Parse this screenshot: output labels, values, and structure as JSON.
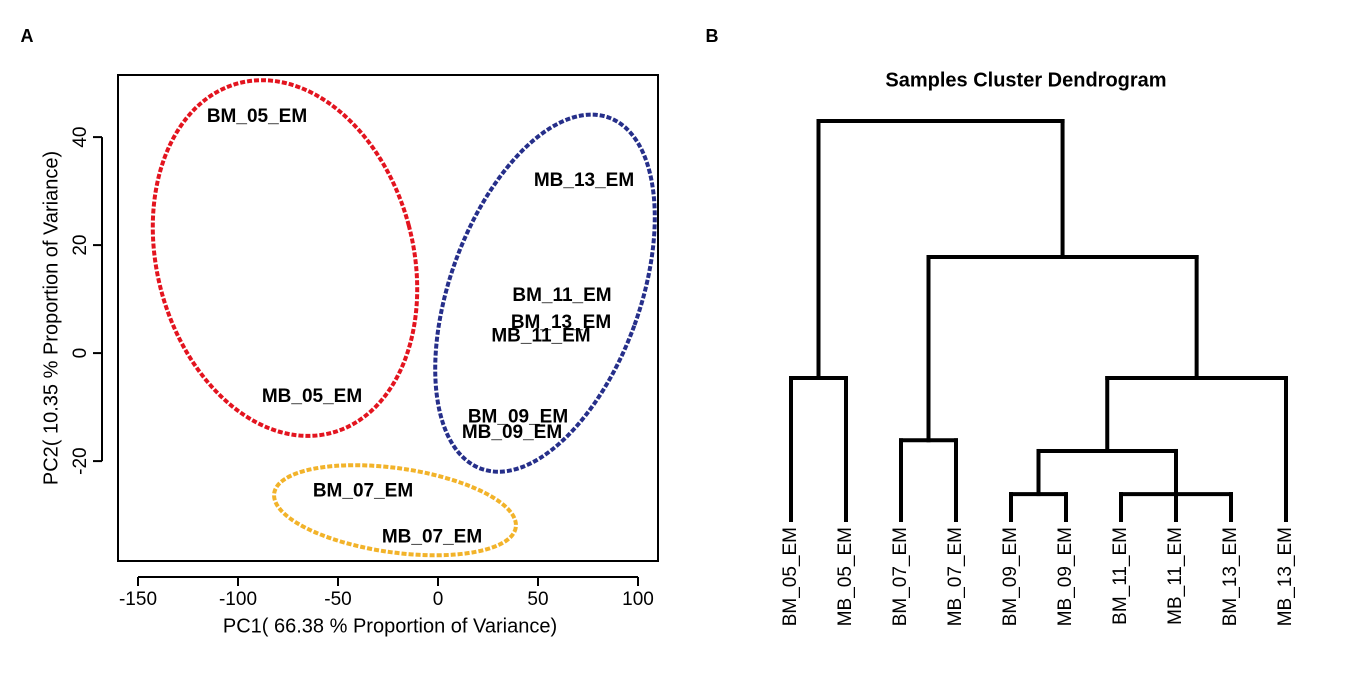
{
  "chart_data": [
    {
      "type": "scatter",
      "panel_label": "A",
      "x_label": "PC1( 66.38 % Proportion of Variance)",
      "y_label": "PC2( 10.35 % Proportion of Variance)",
      "labels": [
        "BM_05_EM",
        "MB_13_EM",
        "BM_11_EM",
        "BM_13_EM",
        "MB_11_EM",
        "MB_05_EM",
        "BM_09_EM",
        "MB_09_EM",
        "BM_07_EM",
        "MB_07_EM"
      ],
      "x": [
        -90.5,
        73,
        62,
        61.5,
        51.5,
        -63,
        40,
        37,
        -37.5,
        -3
      ],
      "y": [
        43.7,
        31.9,
        10.6,
        5.6,
        3.1,
        -8.1,
        -11.9,
        -14.8,
        -25.6,
        -34.1
      ],
      "ellipses": [
        {
          "color": "#e3141f",
          "cx": -76.5,
          "cy": 17.6,
          "rx": 64,
          "ry": 33.5,
          "angle": -15
        },
        {
          "color": "#262f8a",
          "cx": 53.5,
          "cy": 11.1,
          "rx": 47.5,
          "ry": 34.6,
          "angle": 20
        },
        {
          "color": "#f2b32a",
          "cx": -21.5,
          "cy": -29.1,
          "rx": 61,
          "ry": 7.8,
          "angle": 8
        }
      ],
      "xlim": [
        -160,
        110
      ],
      "ylim": [
        -38.5,
        51.5
      ],
      "xticks": [
        -150,
        -100,
        -50,
        0,
        50,
        100
      ],
      "yticks": [
        -20,
        0,
        20,
        40
      ]
    },
    {
      "type": "dendrogram",
      "panel_label": "B",
      "title": "Samples Cluster Dendrogram",
      "labels": [
        "BM_05_EM",
        "MB_05_EM",
        "BM_07_EM",
        "MB_07_EM",
        "BM_09_EM",
        "MB_09_EM",
        "BM_11_EM",
        "MB_11_EM",
        "BM_13_EM",
        "MB_13_EM"
      ],
      "merges": [
        {
          "left": -1,
          "right": -2,
          "height": 35.6
        },
        {
          "left": -3,
          "right": -4,
          "height": 20
        },
        {
          "left": -5,
          "right": -6,
          "height": 6.5
        },
        {
          "left": -7,
          "right": -9,
          "height": 6.5
        },
        {
          "left": 4,
          "right": -8,
          "height": 6.6
        },
        {
          "left": 3,
          "right": 5,
          "height": 17.3
        },
        {
          "left": 6,
          "right": -10,
          "height": 35.6
        },
        {
          "left": 2,
          "right": 7,
          "height": 65.9
        },
        {
          "left": 1,
          "right": 8,
          "height": 100
        }
      ],
      "ylim": [
        0,
        100
      ]
    }
  ]
}
